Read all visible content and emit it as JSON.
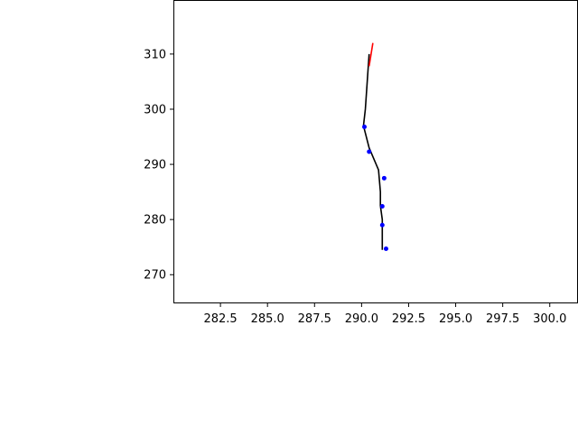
{
  "chart_data": {
    "type": "line",
    "title": "",
    "xlabel": "",
    "ylabel": "",
    "xlim": [
      280.0,
      301.5
    ],
    "ylim": [
      264.8,
      319.8
    ],
    "x_ticks": [
      "282.5",
      "285.0",
      "287.5",
      "290.0",
      "292.5",
      "295.0",
      "297.5",
      "300.0"
    ],
    "y_ticks": [
      "270",
      "280",
      "290",
      "300",
      "310"
    ],
    "grid": false,
    "series": [
      {
        "kind": "line",
        "color": "#000000",
        "points": [
          [
            290.4,
            310.0
          ],
          [
            290.3,
            305.0
          ],
          [
            290.2,
            300.0
          ],
          [
            290.1,
            297.0
          ],
          [
            290.4,
            293.0
          ],
          [
            290.9,
            289.0
          ],
          [
            291.0,
            285.0
          ],
          [
            291.0,
            282.5
          ],
          [
            291.1,
            280.0
          ],
          [
            291.1,
            277.0
          ],
          [
            291.1,
            274.5
          ]
        ]
      },
      {
        "kind": "line",
        "color": "#ff0000",
        "points": [
          [
            290.4,
            307.8
          ],
          [
            290.6,
            312.0
          ]
        ]
      },
      {
        "kind": "scatter",
        "color": "#0000ff",
        "points": [
          [
            290.15,
            296.8
          ],
          [
            290.4,
            292.3
          ],
          [
            291.2,
            287.5
          ],
          [
            291.1,
            282.4
          ],
          [
            291.1,
            279.0
          ],
          [
            291.3,
            274.7
          ]
        ]
      }
    ]
  }
}
